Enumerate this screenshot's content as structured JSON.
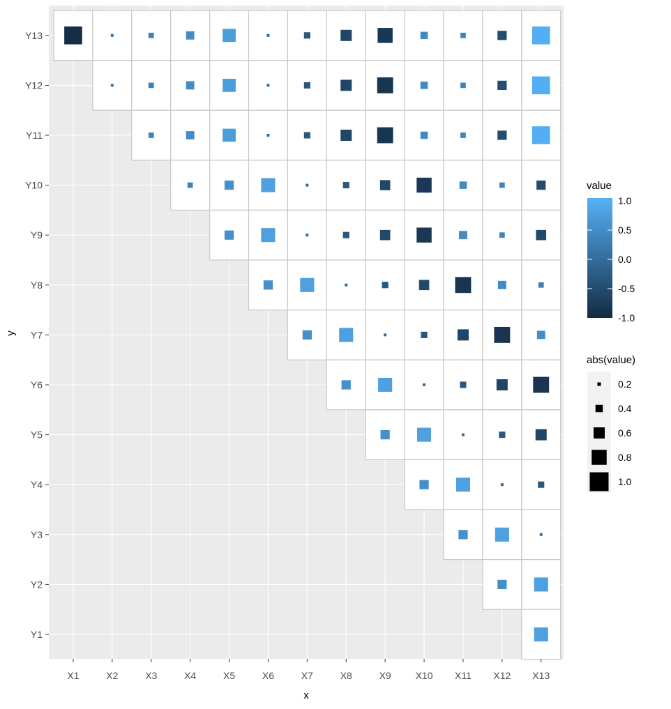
{
  "chart_data": {
    "type": "heatmap",
    "title": "",
    "xlabel": "x",
    "ylabel": "y",
    "x_categories": [
      "X1",
      "X2",
      "X3",
      "X4",
      "X5",
      "X6",
      "X7",
      "X8",
      "X9",
      "X10",
      "X11",
      "X12",
      "X13"
    ],
    "y_categories": [
      "Y1",
      "Y2",
      "Y3",
      "Y4",
      "Y5",
      "Y6",
      "Y7",
      "Y8",
      "Y9",
      "Y10",
      "Y11",
      "Y12",
      "Y13"
    ],
    "grid": true,
    "rows": [
      {
        "y": "Y13",
        "start": "X1",
        "values": [
          -0.95,
          0.05,
          0.3,
          0.45,
          0.7,
          -0.05,
          -0.35,
          -0.6,
          -0.8,
          0.4,
          0.3,
          -0.5,
          0.95
        ]
      },
      {
        "y": "Y12",
        "start": "X2",
        "values": [
          0.05,
          0.3,
          0.45,
          0.7,
          -0.05,
          -0.35,
          -0.6,
          -0.85,
          0.4,
          0.3,
          -0.5,
          0.95
        ]
      },
      {
        "y": "Y11",
        "start": "X3",
        "values": [
          0.3,
          0.45,
          0.7,
          -0.05,
          -0.35,
          -0.6,
          -0.85,
          0.4,
          0.3,
          -0.5,
          0.95
        ]
      },
      {
        "y": "Y10",
        "start": "X4",
        "values": [
          0.3,
          0.5,
          0.75,
          -0.05,
          -0.35,
          -0.55,
          -0.8,
          0.4,
          0.3,
          -0.5
        ]
      },
      {
        "y": "Y9",
        "start": "X5",
        "values": [
          0.5,
          0.75,
          -0.05,
          -0.35,
          -0.55,
          -0.8,
          0.45,
          0.3,
          -0.55
        ]
      },
      {
        "y": "Y8",
        "start": "X6",
        "values": [
          0.5,
          0.75,
          -0.05,
          -0.35,
          -0.55,
          -0.85,
          0.45,
          0.3
        ]
      },
      {
        "y": "Y7",
        "start": "X7",
        "values": [
          0.5,
          0.75,
          -0.05,
          -0.35,
          -0.6,
          -0.85,
          0.45
        ]
      },
      {
        "y": "Y6",
        "start": "X8",
        "values": [
          0.5,
          0.75,
          -0.05,
          -0.35,
          -0.6,
          -0.85
        ]
      },
      {
        "y": "Y5",
        "start": "X9",
        "values": [
          0.5,
          0.75,
          -0.05,
          -0.35,
          -0.6
        ]
      },
      {
        "y": "Y4",
        "start": "X10",
        "values": [
          0.5,
          0.75,
          -0.05,
          -0.35
        ]
      },
      {
        "y": "Y3",
        "start": "X11",
        "values": [
          0.5,
          0.75,
          -0.05
        ]
      },
      {
        "y": "Y2",
        "start": "X12",
        "values": [
          0.5,
          0.75
        ]
      },
      {
        "y": "Y1",
        "start": "X13",
        "values": [
          0.75
        ]
      }
    ],
    "color_legend": {
      "title": "value",
      "low": "#132B43",
      "high": "#56B1F7",
      "range": [
        -1,
        1
      ],
      "labels": [
        "1.0",
        "0.5",
        "0.0",
        "-0.5",
        "-1.0"
      ]
    },
    "size_legend": {
      "title": "abs(value)",
      "labels": [
        "0.2",
        "0.4",
        "0.6",
        "0.8",
        "1.0"
      ]
    },
    "legend_placement": "right"
  }
}
